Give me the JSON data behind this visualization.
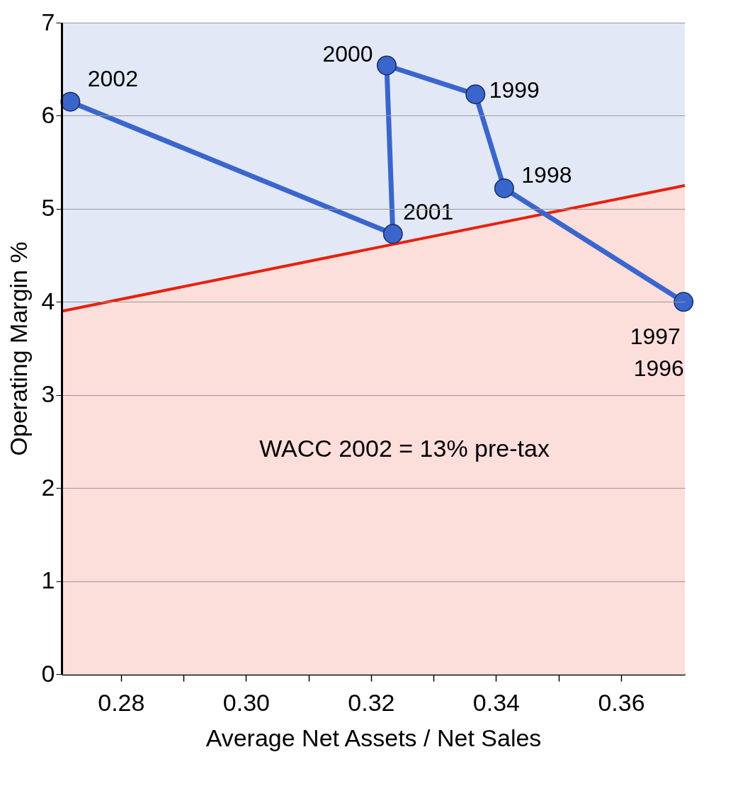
{
  "chart_data": {
    "type": "line",
    "xlabel": "Average Net Assets / Net Sales",
    "ylabel": "Operating Margin %",
    "xlim": [
      0.2705,
      0.3702
    ],
    "ylim": [
      0,
      7
    ],
    "xticks": [
      {
        "value": 0.28,
        "label": "0.28"
      },
      {
        "value": 0.29,
        "label": null
      },
      {
        "value": 0.3,
        "label": "0.30"
      },
      {
        "value": 0.31,
        "label": null
      },
      {
        "value": 0.32,
        "label": "0.32"
      },
      {
        "value": 0.33,
        "label": null
      },
      {
        "value": 0.34,
        "label": "0.34"
      },
      {
        "value": 0.35,
        "label": null
      },
      {
        "value": 0.36,
        "label": "0.36"
      }
    ],
    "yticks": [
      0,
      1,
      2,
      3,
      4,
      5,
      6,
      7
    ],
    "grid": "y",
    "marker": "circle",
    "line_style": "solid",
    "series": [
      {
        "type": "area",
        "marker": "none",
        "color": "#e8200c",
        "x": [
          0.2705,
          0.3702
        ],
        "values": [
          3.9,
          5.25
        ]
      },
      {
        "color": "#3a66cc",
        "x": [
          0.37,
          0.3413,
          0.3367,
          0.3225,
          0.3235,
          0.2719
        ],
        "values": [
          4.0,
          5.22,
          6.23,
          6.54,
          4.73,
          6.15
        ]
      }
    ],
    "annotations": [
      {
        "text": "1997",
        "x": 0.37,
        "y": 4.0
      },
      {
        "text": "1996",
        "x": 0.37,
        "y": 4.0
      },
      {
        "text": "1998",
        "x": 0.3413,
        "y": 5.22
      },
      {
        "text": "1999",
        "x": 0.3367,
        "y": 6.23
      },
      {
        "text": "2000",
        "x": 0.3225,
        "y": 6.54
      },
      {
        "text": "2001",
        "x": 0.3235,
        "y": 4.73
      },
      {
        "text": "2002",
        "x": 0.2719,
        "y": 6.15
      },
      "WACC 2002 = 13% pre-tax"
    ]
  }
}
